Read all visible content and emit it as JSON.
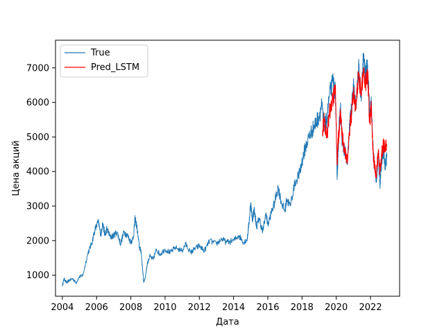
{
  "chart_data": {
    "type": "line",
    "title": "",
    "xlabel": "Дата",
    "ylabel": "Цена акций",
    "xlim": [
      2003.6,
      2023.7
    ],
    "ylim": [
      390,
      7800
    ],
    "x_ticks": [
      2004,
      2006,
      2008,
      2010,
      2012,
      2014,
      2016,
      2018,
      2020,
      2022
    ],
    "x_tick_labels": [
      "2004",
      "2006",
      "2008",
      "2010",
      "2012",
      "2014",
      "2016",
      "2018",
      "2020",
      "2022"
    ],
    "y_ticks": [
      1000,
      2000,
      3000,
      4000,
      5000,
      6000,
      7000
    ],
    "y_tick_labels": [
      "1000",
      "2000",
      "3000",
      "4000",
      "5000",
      "6000",
      "7000"
    ],
    "grid": false,
    "legend_position": "upper-left",
    "series": [
      {
        "name": "True",
        "color": "#1f77b4",
        "x": [
          2004.0,
          2004.1,
          2004.25,
          2004.4,
          2004.6,
          2004.8,
          2005.0,
          2005.2,
          2005.5,
          2005.7,
          2005.9,
          2006.1,
          2006.25,
          2006.35,
          2006.5,
          2006.6,
          2006.8,
          2007.0,
          2007.2,
          2007.4,
          2007.6,
          2007.8,
          2008.0,
          2008.15,
          2008.25,
          2008.35,
          2008.5,
          2008.6,
          2008.7,
          2008.75,
          2008.85,
          2008.95,
          2009.1,
          2009.3,
          2009.5,
          2009.7,
          2010.0,
          2010.3,
          2010.6,
          2011.0,
          2011.2,
          2011.5,
          2011.7,
          2012.0,
          2012.3,
          2012.6,
          2013.0,
          2013.3,
          2013.6,
          2014.0,
          2014.3,
          2014.6,
          2014.8,
          2014.9,
          2015.0,
          2015.1,
          2015.2,
          2015.35,
          2015.5,
          2015.7,
          2015.9,
          2016.0,
          2016.2,
          2016.4,
          2016.6,
          2016.8,
          2017.0,
          2017.1,
          2017.3,
          2017.6,
          2017.9,
          2018.0,
          2018.2,
          2018.4,
          2018.6,
          2018.8,
          2019.0,
          2019.15,
          2019.3,
          2019.45,
          2019.6,
          2019.8,
          2019.95,
          2020.05,
          2020.1,
          2020.15,
          2020.2,
          2020.25,
          2020.35,
          2020.5,
          2020.65,
          2020.8,
          2020.9,
          2021.0,
          2021.15,
          2021.3,
          2021.45,
          2021.6,
          2021.7,
          2021.8,
          2021.85,
          2021.95,
          2022.05,
          2022.15,
          2022.25,
          2022.35,
          2022.45,
          2022.55,
          2022.65,
          2022.75,
          2022.85,
          2022.95
        ],
        "values": [
          700,
          900,
          780,
          850,
          900,
          780,
          950,
          1000,
          1650,
          1900,
          2300,
          2550,
          2150,
          2500,
          2150,
          2350,
          2100,
          2150,
          2250,
          1900,
          2250,
          2150,
          1950,
          2100,
          2650,
          2400,
          1800,
          1700,
          1100,
          800,
          950,
          1300,
          1550,
          1450,
          1750,
          1600,
          1750,
          1650,
          1800,
          1700,
          1900,
          1650,
          1750,
          1850,
          1700,
          2000,
          1900,
          2050,
          1950,
          2000,
          2150,
          1950,
          2050,
          2500,
          3100,
          2600,
          2900,
          2400,
          2650,
          2250,
          2800,
          2450,
          2800,
          3100,
          3550,
          3100,
          2850,
          3200,
          3000,
          3700,
          4000,
          4300,
          4700,
          5000,
          5200,
          5400,
          5600,
          5900,
          5300,
          5500,
          6200,
          6600,
          6300,
          3850,
          4400,
          5200,
          5500,
          5800,
          4800,
          4600,
          4200,
          5500,
          5800,
          6500,
          5800,
          7000,
          6200,
          7400,
          6700,
          7100,
          6900,
          5600,
          6000,
          4600,
          4100,
          3700,
          4500,
          3600,
          4300,
          4600,
          4200,
          4400
        ]
      },
      {
        "name": "Pred_LSTM",
        "color": "#ff0000",
        "x": [
          2019.2,
          2019.3,
          2019.45,
          2019.6,
          2019.8,
          2019.95,
          2020.05,
          2020.1,
          2020.15,
          2020.2,
          2020.25,
          2020.35,
          2020.5,
          2020.65,
          2020.8,
          2020.9,
          2021.0,
          2021.15,
          2021.3,
          2021.45,
          2021.6,
          2021.7,
          2021.8,
          2021.85,
          2021.95,
          2022.05,
          2022.15,
          2022.25,
          2022.35,
          2022.45,
          2022.55,
          2022.65,
          2022.75,
          2022.85,
          2022.95
        ],
        "values": [
          5200,
          5500,
          5000,
          5700,
          6100,
          6400,
          4200,
          4800,
          5100,
          5400,
          5700,
          5000,
          4600,
          4300,
          5300,
          5700,
          6300,
          5800,
          6900,
          6200,
          7000,
          6500,
          6900,
          6700,
          5400,
          5900,
          4500,
          4100,
          3900,
          4600,
          4000,
          4500,
          4800,
          4700,
          4750
        ]
      }
    ]
  }
}
